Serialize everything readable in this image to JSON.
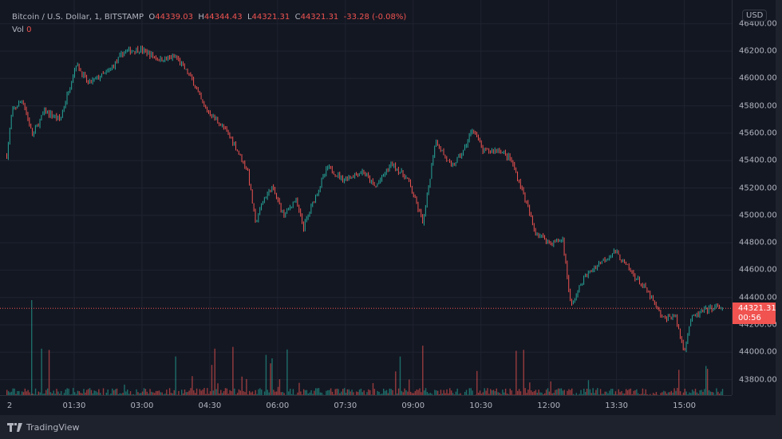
{
  "legend": {
    "symbol": "Bitcoin / U.S. Dollar, 1, BITSTAMP",
    "open_label": "O",
    "open": "44339.03",
    "high_label": "H",
    "high": "44344.43",
    "low_label": "L",
    "low": "44321.31",
    "close_label": "C",
    "close": "44321.31",
    "change": "-33.28 (-0.08%)",
    "vol_label": "Vol",
    "vol": "0"
  },
  "currency": "USD",
  "last_price": {
    "price": "44321.31",
    "countdown": "00:56",
    "color": "#f05350"
  },
  "brand": "TradingView",
  "colors": {
    "up": "#26a69a",
    "down": "#ef5350",
    "background": "#131722"
  },
  "chart_data": {
    "type": "candlestick",
    "interval": "1 minute",
    "price_ticks": [
      "46400.00",
      "46200.00",
      "46000.00",
      "45800.00",
      "45600.00",
      "45400.00",
      "45200.00",
      "45000.00",
      "44800.00",
      "44600.00",
      "44400.00",
      "44200.00",
      "44000.00",
      "43800.00"
    ],
    "time_ticks": [
      "2",
      "01:30",
      "03:00",
      "04:30",
      "06:00",
      "07:30",
      "09:00",
      "10:30",
      "12:00",
      "13:30",
      "15:00"
    ],
    "ylim": [
      43700,
      46450
    ],
    "grid": true,
    "approx_close": [
      [
        "00:00",
        45438
      ],
      [
        "00:07",
        45760
      ],
      [
        "00:21",
        45846
      ],
      [
        "00:34",
        45584
      ],
      [
        "00:50",
        45760
      ],
      [
        "01:11",
        45700
      ],
      [
        "01:32",
        46108
      ],
      [
        "01:48",
        45963
      ],
      [
        "02:15",
        46050
      ],
      [
        "02:36",
        46196
      ],
      [
        "02:57",
        46213
      ],
      [
        "03:23",
        46138
      ],
      [
        "03:45",
        46155
      ],
      [
        "04:06",
        45992
      ],
      [
        "04:22",
        45788
      ],
      [
        "04:43",
        45671
      ],
      [
        "04:59",
        45554
      ],
      [
        "05:20",
        45321
      ],
      [
        "05:30",
        44942
      ],
      [
        "05:41",
        45117
      ],
      [
        "05:52",
        45204
      ],
      [
        "06:08",
        45000
      ],
      [
        "06:23",
        45117
      ],
      [
        "06:34",
        44913
      ],
      [
        "06:50",
        45146
      ],
      [
        "07:06",
        45350
      ],
      [
        "07:27",
        45263
      ],
      [
        "07:53",
        45321
      ],
      [
        "08:09",
        45204
      ],
      [
        "08:31",
        45379
      ],
      [
        "08:52",
        45263
      ],
      [
        "09:13",
        44942
      ],
      [
        "09:29",
        45554
      ],
      [
        "09:50",
        45350
      ],
      [
        "10:06",
        45467
      ],
      [
        "10:19",
        45642
      ],
      [
        "10:32",
        45467
      ],
      [
        "10:54",
        45480
      ],
      [
        "11:09",
        45409
      ],
      [
        "11:25",
        45175
      ],
      [
        "11:41",
        44884
      ],
      [
        "12:02",
        44796
      ],
      [
        "12:18",
        44825
      ],
      [
        "12:29",
        44330
      ],
      [
        "12:45",
        44534
      ],
      [
        "13:06",
        44650
      ],
      [
        "13:27",
        44738
      ],
      [
        "13:48",
        44592
      ],
      [
        "14:10",
        44446
      ],
      [
        "14:31",
        44242
      ],
      [
        "14:47",
        44271
      ],
      [
        "14:59",
        44009
      ],
      [
        "15:08",
        44242
      ],
      [
        "15:24",
        44300
      ],
      [
        "15:40",
        44330
      ],
      [
        "15:51",
        44321.31
      ]
    ]
  }
}
